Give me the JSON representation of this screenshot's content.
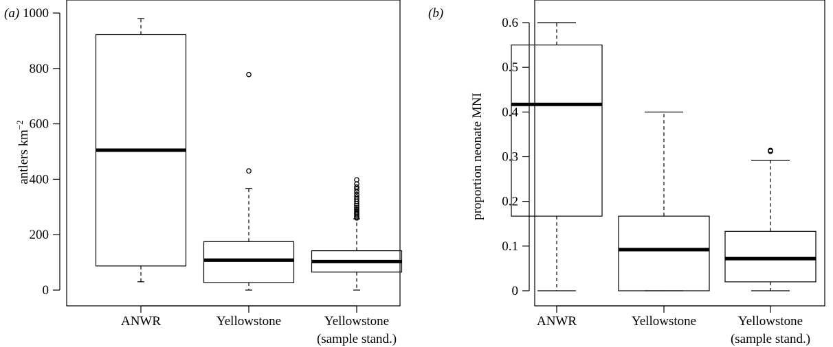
{
  "chart_data": [
    {
      "type": "box",
      "panel": "(a)",
      "ylabel_main": "antlers km",
      "ylabel_sup": "−2",
      "ylim": [
        0,
        1000
      ],
      "yticks": [
        "0",
        "200",
        "400",
        "600",
        "800",
        "1000"
      ],
      "categories": [
        {
          "label": "ANWR",
          "label2": ""
        },
        {
          "label": "Yellowstone",
          "label2": ""
        },
        {
          "label": "Yellowstone",
          "label2": "(sample stand.)"
        }
      ],
      "boxes": [
        {
          "min": 30,
          "q1": 87,
          "median": 505,
          "q3": 922,
          "max": 980,
          "outliers": []
        },
        {
          "min": 0,
          "q1": 27,
          "median": 108,
          "q3": 175,
          "max": 367,
          "outliers": [
            430,
            778
          ]
        },
        {
          "min": 0,
          "q1": 65,
          "median": 103,
          "q3": 142,
          "max": 257,
          "outliers": [
            260,
            265,
            270,
            275,
            280,
            286,
            292,
            298,
            305,
            312,
            320,
            328,
            336,
            345,
            355,
            365,
            372,
            383,
            398
          ]
        }
      ]
    },
    {
      "type": "box",
      "panel": "(b)",
      "ylabel_main": "proportion neonate MNI",
      "ylabel_sup": "",
      "ylim": [
        0,
        0.6
      ],
      "yticks": [
        "0",
        "0.1",
        "0.2",
        "0.3",
        "0.4",
        "0.5",
        "0.6"
      ],
      "categories": [
        {
          "label": "ANWR",
          "label2": ""
        },
        {
          "label": "Yellowstone",
          "label2": ""
        },
        {
          "label": "Yellowstone",
          "label2": "(sample stand.)"
        }
      ],
      "boxes": [
        {
          "min": 0,
          "q1": 0.167,
          "median": 0.417,
          "q3": 0.55,
          "max": 0.6,
          "outliers": []
        },
        {
          "min": 0,
          "q1": 0,
          "median": 0.092,
          "q3": 0.167,
          "max": 0.4,
          "outliers": []
        },
        {
          "min": 0,
          "q1": 0.02,
          "median": 0.072,
          "q3": 0.133,
          "max": 0.292,
          "outliers": [
            0.312,
            0.314
          ]
        }
      ]
    }
  ]
}
